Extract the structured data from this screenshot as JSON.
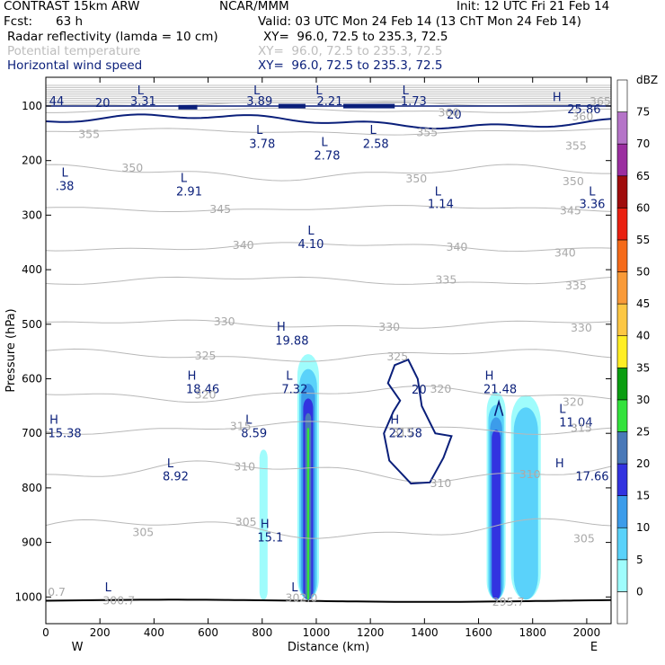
{
  "header": {
    "model": "CONTRAST 15km ARW",
    "center": "NCAR/MMM",
    "init": "Init: 12 UTC Fri 21 Feb 14",
    "fcst_label": "Fcst:",
    "fcst_value": "63 h",
    "valid": "Valid: 03 UTC Mon 24 Feb 14 (13 ChT Mon 24 Feb 14)",
    "fields": [
      {
        "name": "Radar reflectivity (lamda = 10 cm)",
        "xy": "XY=  96.0, 72.5 to 235.3, 72.5",
        "color": "#000000"
      },
      {
        "name": "Potential temperature",
        "xy": "XY=  96.0, 72.5 to 235.3, 72.5",
        "color": "#bdbdbd"
      },
      {
        "name": "Horizontal wind speed",
        "xy": "XY=  96.0, 72.5 to 235.3, 72.5",
        "color": "#0a1f7a"
      }
    ]
  },
  "chart_data": {
    "type": "heatmap",
    "xlabel": "Distance (km)",
    "ylabel": "Pressure (hPa)",
    "xlim": [
      0,
      2090
    ],
    "ylim": [
      1050,
      60
    ],
    "x_ticks": [
      0,
      200,
      400,
      600,
      800,
      1000,
      1200,
      1400,
      1600,
      1800,
      2000
    ],
    "y_ticks": [
      100,
      200,
      300,
      400,
      500,
      600,
      700,
      800,
      900,
      1000
    ],
    "x_end_labels": {
      "left": "W",
      "right": "E"
    },
    "colorbar": {
      "unit": "dBZ",
      "levels": [
        0,
        5,
        10,
        15,
        20,
        25,
        30,
        35,
        40,
        45,
        50,
        55,
        60,
        65,
        70,
        75
      ],
      "colors": [
        "#ffffff",
        "#9ffcfc",
        "#5ad2fa",
        "#3c9cea",
        "#3233e0",
        "#4a79b8",
        "#33e23c",
        "#0a9d10",
        "#ffee24",
        "#fdc743",
        "#f99a38",
        "#f56a19",
        "#ea2010",
        "#a00c0c",
        "#9b2ea0",
        "#b574c8",
        "#ffffff"
      ]
    },
    "theta_labels": [
      {
        "text": "355",
        "x": 160,
        "p": 150
      },
      {
        "text": "355",
        "x": 1410,
        "p": 147
      },
      {
        "text": "355",
        "x": 1960,
        "p": 172
      },
      {
        "text": "350",
        "x": 320,
        "p": 212
      },
      {
        "text": "350",
        "x": 1370,
        "p": 232
      },
      {
        "text": "350",
        "x": 1950,
        "p": 237
      },
      {
        "text": "345",
        "x": 645,
        "p": 288
      },
      {
        "text": "345",
        "x": 1940,
        "p": 290
      },
      {
        "text": "340",
        "x": 730,
        "p": 354
      },
      {
        "text": "340",
        "x": 1520,
        "p": 357
      },
      {
        "text": "340",
        "x": 1920,
        "p": 368
      },
      {
        "text": "335",
        "x": 1480,
        "p": 417
      },
      {
        "text": "335",
        "x": 1960,
        "p": 428
      },
      {
        "text": "330",
        "x": 660,
        "p": 494
      },
      {
        "text": "330",
        "x": 1270,
        "p": 504
      },
      {
        "text": "330",
        "x": 1980,
        "p": 505
      },
      {
        "text": "325",
        "x": 590,
        "p": 556
      },
      {
        "text": "325",
        "x": 1300,
        "p": 558
      },
      {
        "text": "320",
        "x": 590,
        "p": 628
      },
      {
        "text": "320",
        "x": 1460,
        "p": 617
      },
      {
        "text": "320",
        "x": 1950,
        "p": 641
      },
      {
        "text": "315",
        "x": 720,
        "p": 686
      },
      {
        "text": "315",
        "x": 1320,
        "p": 697
      },
      {
        "text": "315",
        "x": 1980,
        "p": 689
      },
      {
        "text": "310",
        "x": 735,
        "p": 760
      },
      {
        "text": "310",
        "x": 1460,
        "p": 790
      },
      {
        "text": "310",
        "x": 1790,
        "p": 774
      },
      {
        "text": "305",
        "x": 360,
        "p": 880
      },
      {
        "text": "305",
        "x": 740,
        "p": 861
      },
      {
        "text": "305",
        "x": 1990,
        "p": 892
      },
      {
        "text": "300.7",
        "x": 270,
        "p": 1005
      },
      {
        "text": "0.7",
        "x": 40,
        "p": 990
      },
      {
        "text": "302.0",
        "x": 945,
        "p": 1000
      },
      {
        "text": "295.7",
        "x": 1710,
        "p": 1008
      },
      {
        "text": "365",
        "x": 2050,
        "p": 90
      },
      {
        "text": "360",
        "x": 1490,
        "p": 111
      },
      {
        "text": "360",
        "x": 1985,
        "p": 118
      }
    ],
    "wind_labels": [
      {
        "text": "44",
        "x": 40,
        "p": 90
      },
      {
        "text": "20",
        "x": 210,
        "p": 93
      },
      {
        "text": "3.31",
        "x": 360,
        "p": 90
      },
      {
        "text": "3.89",
        "x": 790,
        "p": 90
      },
      {
        "text": "2.21",
        "x": 1050,
        "p": 90
      },
      {
        "text": "1.73",
        "x": 1360,
        "p": 90
      },
      {
        "text": "20",
        "x": 1510,
        "p": 115
      },
      {
        "text": "20",
        "x": 1380,
        "p": 619
      },
      {
        "text": "3.78",
        "x": 800,
        "p": 168
      },
      {
        "text": "2.78",
        "x": 1040,
        "p": 190
      },
      {
        "text": "2.58",
        "x": 1220,
        "p": 168
      },
      {
        "text": ".38",
        "x": 70,
        "p": 246
      },
      {
        "text": "2.91",
        "x": 530,
        "p": 256
      },
      {
        "text": "1.14",
        "x": 1460,
        "p": 279
      },
      {
        "text": "3.36",
        "x": 2020,
        "p": 279
      },
      {
        "text": "4.10",
        "x": 980,
        "p": 352
      },
      {
        "text": "19.88",
        "x": 910,
        "p": 529
      },
      {
        "text": "18.46",
        "x": 580,
        "p": 618
      },
      {
        "text": "7.32",
        "x": 920,
        "p": 618
      },
      {
        "text": "21.48",
        "x": 1680,
        "p": 618
      },
      {
        "text": "11.04",
        "x": 1960,
        "p": 679
      },
      {
        "text": "15.38",
        "x": 70,
        "p": 699
      },
      {
        "text": "8.59",
        "x": 770,
        "p": 699
      },
      {
        "text": "22.58",
        "x": 1330,
        "p": 699
      },
      {
        "text": "8.92",
        "x": 480,
        "p": 778
      },
      {
        "text": "17.66",
        "x": 2020,
        "p": 778
      },
      {
        "text": "15.1",
        "x": 830,
        "p": 890
      },
      {
        "text": "25.86",
        "x": 1990,
        "p": 105
      }
    ],
    "extrema_markers": [
      {
        "text": "L",
        "x": 350,
        "p": 70
      },
      {
        "text": "L",
        "x": 780,
        "p": 70
      },
      {
        "text": "L",
        "x": 1010,
        "p": 70
      },
      {
        "text": "L",
        "x": 1330,
        "p": 70
      },
      {
        "text": "H",
        "x": 1890,
        "p": 83
      },
      {
        "text": "L",
        "x": 790,
        "p": 143
      },
      {
        "text": "L",
        "x": 1030,
        "p": 165
      },
      {
        "text": "L",
        "x": 1210,
        "p": 143
      },
      {
        "text": "L",
        "x": 70,
        "p": 221
      },
      {
        "text": "L",
        "x": 510,
        "p": 231
      },
      {
        "text": "L",
        "x": 1450,
        "p": 256
      },
      {
        "text": "L",
        "x": 2020,
        "p": 256
      },
      {
        "text": "L",
        "x": 980,
        "p": 327
      },
      {
        "text": "H",
        "x": 870,
        "p": 504
      },
      {
        "text": "H",
        "x": 540,
        "p": 593
      },
      {
        "text": "L",
        "x": 900,
        "p": 593
      },
      {
        "text": "H",
        "x": 1640,
        "p": 593
      },
      {
        "text": "L",
        "x": 1910,
        "p": 654
      },
      {
        "text": "H",
        "x": 30,
        "p": 674
      },
      {
        "text": "L",
        "x": 750,
        "p": 674
      },
      {
        "text": "H",
        "x": 1290,
        "p": 674
      },
      {
        "text": "L",
        "x": 460,
        "p": 754
      },
      {
        "text": "H",
        "x": 1900,
        "p": 754
      },
      {
        "text": "H",
        "x": 810,
        "p": 865
      },
      {
        "text": "L",
        "x": 230,
        "p": 981
      },
      {
        "text": "L",
        "x": 920,
        "p": 981
      }
    ],
    "reflectivity_cells": [
      {
        "x0": 790,
        "x1": 820,
        "ptop": 730,
        "pbase": 1005,
        "levels": [
          5
        ]
      },
      {
        "x0": 930,
        "x1": 1010,
        "ptop": 555,
        "pbase": 1005,
        "levels": [
          5,
          10,
          15,
          20,
          25,
          30
        ]
      },
      {
        "x0": 1630,
        "x1": 1700,
        "ptop": 625,
        "pbase": 1005,
        "levels": [
          5,
          10,
          15,
          20
        ]
      },
      {
        "x0": 1720,
        "x1": 1830,
        "ptop": 630,
        "pbase": 1005,
        "levels": [
          5,
          10
        ]
      }
    ]
  }
}
